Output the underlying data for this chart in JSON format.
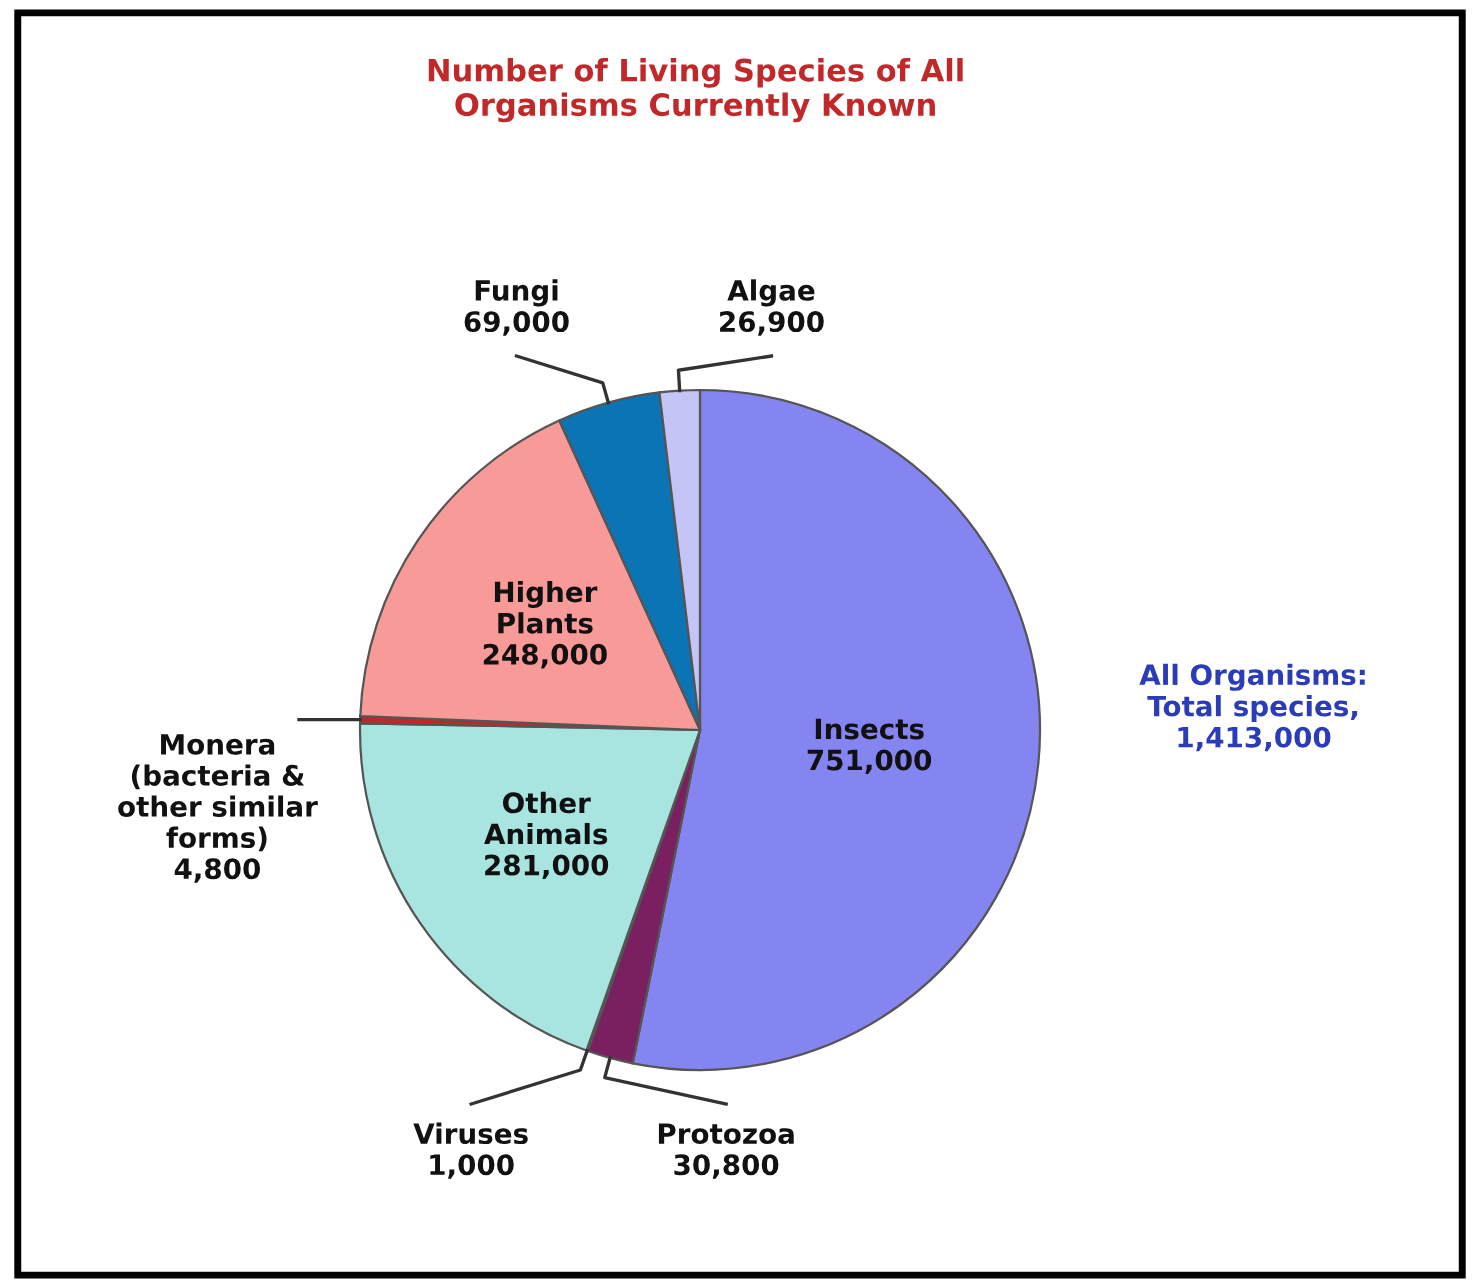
{
  "chart_data": {
    "type": "pie",
    "title": "Number of Living Species of All\nOrganisms Currently Known",
    "categories": [
      "Insects",
      "Protozoa",
      "Viruses",
      "Other\nAnimals",
      "Monera\n(bacteria &\nother similar\nforms)",
      "Higher\nPlants",
      "Fungi",
      "Algae"
    ],
    "values": [
      751000,
      30800,
      1000,
      281000,
      4800,
      248000,
      69000,
      26900
    ],
    "value_labels": [
      "751,000",
      "30,800",
      "1,000",
      "281,000",
      "4,800",
      "248,000",
      "69,000",
      "26,900"
    ],
    "colors": [
      "#8585f2",
      "#7a2060",
      "#d02020",
      "#a8e4e0",
      "#c02828",
      "#f89a98",
      "#0a74b4",
      "#c4c4f6"
    ],
    "annotations": [
      "All Organisms:\nTotal species,\n1,413,000"
    ]
  }
}
